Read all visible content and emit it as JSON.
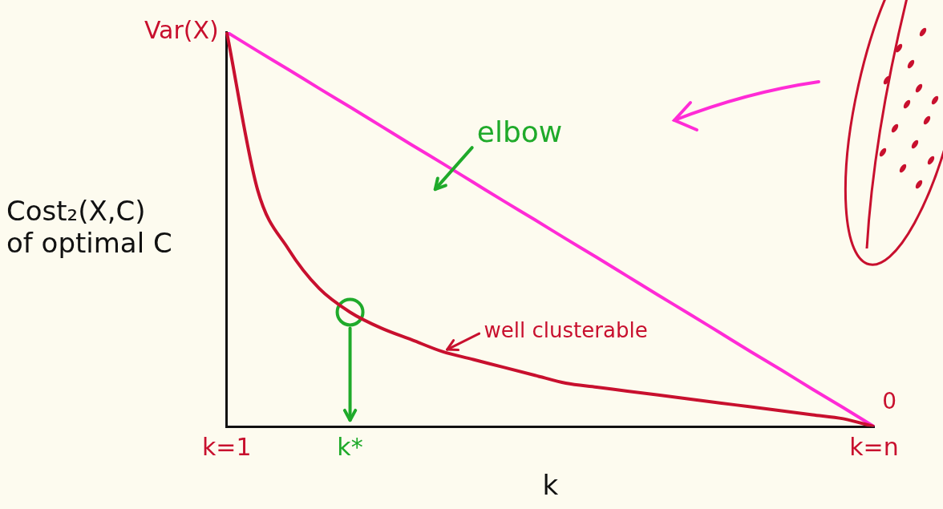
{
  "chart_data": {
    "type": "line",
    "x_label": "k",
    "y_label": [
      "Cost₂(X,C)",
      "of optimal C"
    ],
    "categories": [
      "k=1",
      null,
      null,
      null,
      "k*",
      null,
      null,
      null,
      null,
      null,
      null,
      null,
      null,
      null,
      null,
      null,
      null,
      null,
      null,
      null,
      null,
      "k=n"
    ],
    "ylim": [
      0,
      100
    ],
    "yticks": [
      {
        "value": 100,
        "label": "Var(X)"
      }
    ],
    "grid": false,
    "series": [
      {
        "color": "#c8102e",
        "marker": "none",
        "line_style": "solid",
        "values": [
          100,
          60,
          45,
          35,
          29,
          25,
          22,
          19,
          17,
          15,
          13,
          11,
          10,
          9,
          8,
          7,
          6,
          5,
          4,
          3,
          2,
          0
        ]
      },
      {
        "color": "#ff2bd6",
        "marker": "none",
        "line_style": "solid",
        "values": [
          100,
          95.2,
          90.5,
          85.7,
          81,
          76.2,
          71.4,
          66.7,
          61.9,
          57.1,
          52.4,
          47.6,
          42.9,
          38.1,
          33.3,
          28.6,
          23.8,
          19,
          14.3,
          9.5,
          4.8,
          0
        ]
      },
      {
        "color": "#1faa2a",
        "marker": "circle",
        "line_style": "none",
        "values": [
          null,
          null,
          null,
          null,
          29,
          null,
          null,
          null,
          null,
          null,
          null,
          null,
          null,
          null,
          null,
          null,
          null,
          null,
          null,
          null,
          null,
          null
        ]
      }
    ],
    "annotations": [
      {
        "text": "elbow",
        "x": 9.5,
        "y": 74,
        "color": "#1faa2a"
      },
      {
        "text": "well clusterable",
        "x": 11,
        "y": 24,
        "color": "#c8102e"
      },
      {
        "text": "0",
        "x": 21.5,
        "y": 6,
        "color": "#c8102e"
      }
    ]
  }
}
